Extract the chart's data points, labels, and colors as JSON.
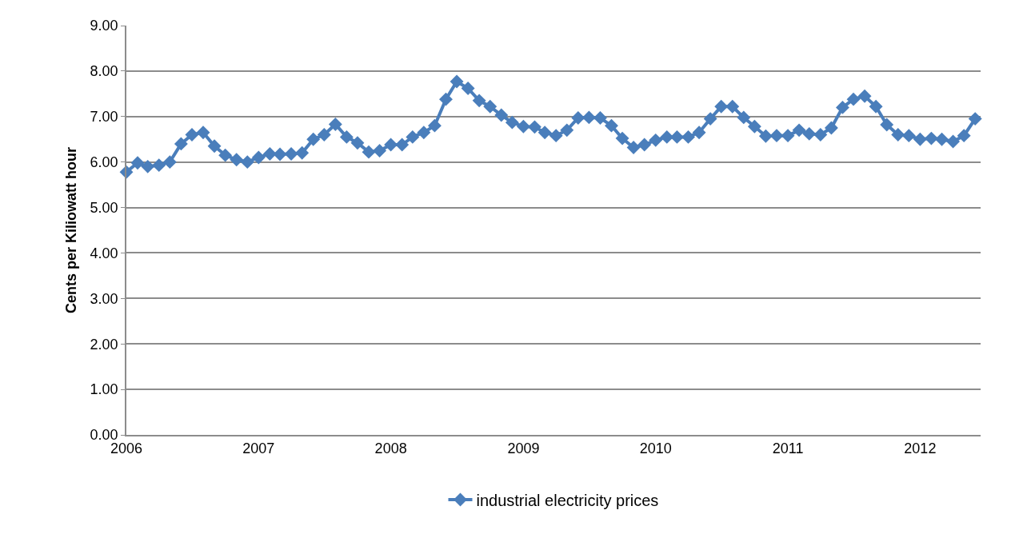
{
  "chart_data": {
    "type": "line",
    "ylabel": "Cents per Kiliowatt hour",
    "x": [
      "2006-01",
      "2006-02",
      "2006-03",
      "2006-04",
      "2006-05",
      "2006-06",
      "2006-07",
      "2006-08",
      "2006-09",
      "2006-10",
      "2006-11",
      "2006-12",
      "2007-01",
      "2007-02",
      "2007-03",
      "2007-04",
      "2007-05",
      "2007-06",
      "2007-07",
      "2007-08",
      "2007-09",
      "2007-10",
      "2007-11",
      "2007-12",
      "2008-01",
      "2008-02",
      "2008-03",
      "2008-04",
      "2008-05",
      "2008-06",
      "2008-07",
      "2008-08",
      "2008-09",
      "2008-10",
      "2008-11",
      "2008-12",
      "2009-01",
      "2009-02",
      "2009-03",
      "2009-04",
      "2009-05",
      "2009-06",
      "2009-07",
      "2009-08",
      "2009-09",
      "2009-10",
      "2009-11",
      "2009-12",
      "2010-01",
      "2010-02",
      "2010-03",
      "2010-04",
      "2010-05",
      "2010-06",
      "2010-07",
      "2010-08",
      "2010-09",
      "2010-10",
      "2010-11",
      "2010-12",
      "2011-01",
      "2011-02",
      "2011-03",
      "2011-04",
      "2011-05",
      "2011-06",
      "2011-07",
      "2011-08",
      "2011-09",
      "2011-10",
      "2011-11",
      "2011-12",
      "2012-01",
      "2012-02",
      "2012-03",
      "2012-04",
      "2012-05",
      "2012-06"
    ],
    "series": [
      {
        "name": "industrial electricity prices",
        "color": "#4a7ebb",
        "values": [
          5.78,
          5.98,
          5.9,
          5.93,
          6.0,
          6.4,
          6.6,
          6.65,
          6.35,
          6.15,
          6.05,
          6.0,
          6.1,
          6.18,
          6.17,
          6.18,
          6.2,
          6.5,
          6.6,
          6.83,
          6.55,
          6.42,
          6.22,
          6.25,
          6.38,
          6.38,
          6.55,
          6.65,
          6.8,
          7.38,
          7.77,
          7.62,
          7.35,
          7.22,
          7.03,
          6.87,
          6.78,
          6.77,
          6.65,
          6.58,
          6.7,
          6.97,
          6.98,
          6.97,
          6.8,
          6.52,
          6.32,
          6.38,
          6.48,
          6.55,
          6.55,
          6.55,
          6.65,
          6.95,
          7.22,
          7.22,
          6.98,
          6.78,
          6.57,
          6.58,
          6.58,
          6.7,
          6.62,
          6.6,
          6.75,
          7.2,
          7.38,
          7.45,
          7.22,
          6.82,
          6.6,
          6.58,
          6.5,
          6.52,
          6.5,
          6.45,
          6.58,
          6.95
        ]
      }
    ],
    "xlim": [
      "2006-01-01",
      "2012-06-16"
    ],
    "xticks": [
      {
        "value": "2006-01",
        "label": "2006"
      },
      {
        "value": "2007-01",
        "label": "2007"
      },
      {
        "value": "2008-01",
        "label": "2008"
      },
      {
        "value": "2009-01",
        "label": "2009"
      },
      {
        "value": "2010-01",
        "label": "2010"
      },
      {
        "value": "2011-01",
        "label": "2011"
      },
      {
        "value": "2012-01",
        "label": "2012"
      }
    ],
    "ylim": [
      0,
      9
    ],
    "yticks": [
      {
        "value": 0,
        "label": "0.00"
      },
      {
        "value": 1,
        "label": "1.00"
      },
      {
        "value": 2,
        "label": "2.00"
      },
      {
        "value": 3,
        "label": "3.00"
      },
      {
        "value": 4,
        "label": "4.00"
      },
      {
        "value": 5,
        "label": "5.00"
      },
      {
        "value": 6,
        "label": "6.00"
      },
      {
        "value": 7,
        "label": "7.00"
      },
      {
        "value": 8,
        "label": "8.00"
      },
      {
        "value": 9,
        "label": "9.00"
      }
    ],
    "grid": "y",
    "legend": "bottom",
    "marker": "diamond",
    "line_style": "solid"
  }
}
